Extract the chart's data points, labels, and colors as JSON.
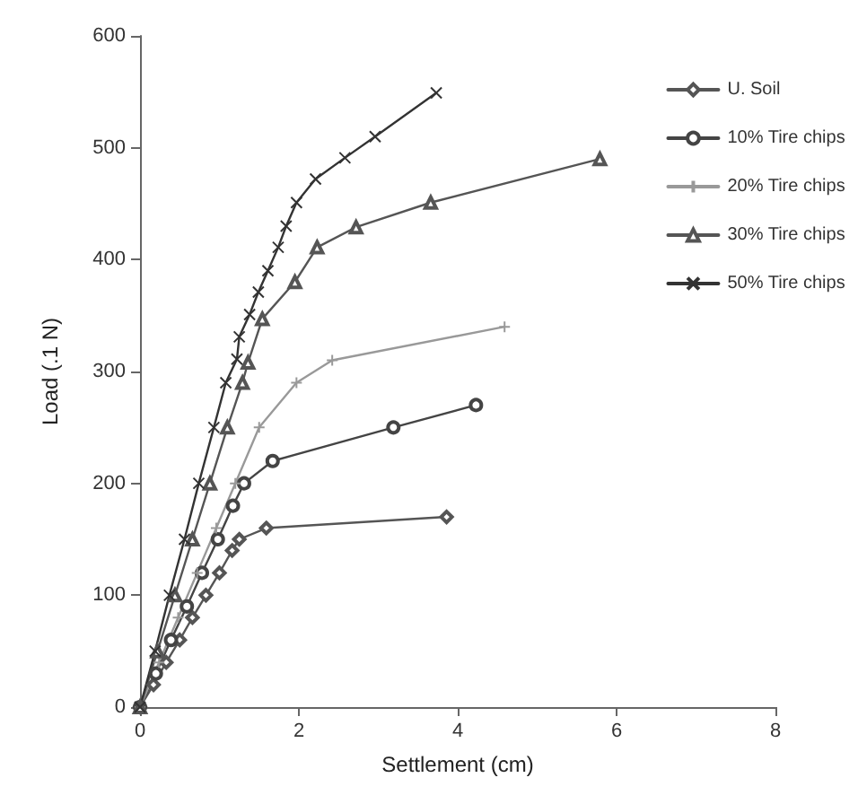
{
  "chart_data": {
    "type": "line",
    "xlabel": "Settlement (cm)",
    "ylabel": "Load (.1 N)",
    "xlim": [
      0,
      8
    ],
    "xticks": [
      0,
      2,
      4,
      6,
      8
    ],
    "ylim": [
      0,
      600
    ],
    "yticks": [
      0,
      100,
      200,
      300,
      400,
      500,
      600
    ],
    "grid": false,
    "legend": "top right",
    "line_style": "solid",
    "series": [
      {
        "name": "U. Soil",
        "color": "#555555",
        "marker": "diamond",
        "x": [
          0,
          0.17,
          0.33,
          0.5,
          0.66,
          0.83,
          1.0,
          1.16,
          1.25,
          1.59,
          3.86
        ],
        "values": [
          0,
          20,
          40,
          60,
          80,
          100,
          120,
          140,
          150,
          160,
          170
        ]
      },
      {
        "name": "10% Tire chips",
        "color": "#444444",
        "marker": "circle",
        "x": [
          0,
          0.2,
          0.39,
          0.59,
          0.78,
          0.98,
          1.17,
          1.31,
          1.67,
          3.19,
          4.23
        ],
        "values": [
          0,
          30,
          60,
          90,
          120,
          150,
          180,
          200,
          220,
          250,
          270
        ]
      },
      {
        "name": "20% Tire chips",
        "color": "#999999",
        "marker": "cross",
        "x": [
          0,
          0.24,
          0.48,
          0.72,
          0.96,
          1.2,
          1.5,
          1.97,
          2.42,
          4.59
        ],
        "values": [
          0,
          40,
          80,
          120,
          160,
          200,
          250,
          290,
          310,
          340
        ]
      },
      {
        "name": "30% Tire chips",
        "color": "#555555",
        "marker": "triangle",
        "x": [
          0,
          0.22,
          0.44,
          0.66,
          0.88,
          1.1,
          1.29,
          1.36,
          1.54,
          1.95,
          2.23,
          2.72,
          3.66,
          5.79
        ],
        "values": [
          0,
          50,
          100,
          150,
          200,
          250,
          290,
          308,
          347,
          380,
          411,
          429,
          451,
          490
        ]
      },
      {
        "name": "50% Tire chips",
        "color": "#333333",
        "marker": "x",
        "x": [
          0,
          0.19,
          0.37,
          0.56,
          0.74,
          0.93,
          1.08,
          1.22,
          1.25,
          1.38,
          1.49,
          1.61,
          1.74,
          1.84,
          1.97,
          2.21,
          2.58,
          2.96,
          3.73
        ],
        "values": [
          0,
          50,
          100,
          150,
          200,
          250,
          290,
          311,
          331,
          351,
          371,
          390,
          411,
          430,
          451,
          472,
          491,
          510,
          549
        ]
      }
    ]
  }
}
